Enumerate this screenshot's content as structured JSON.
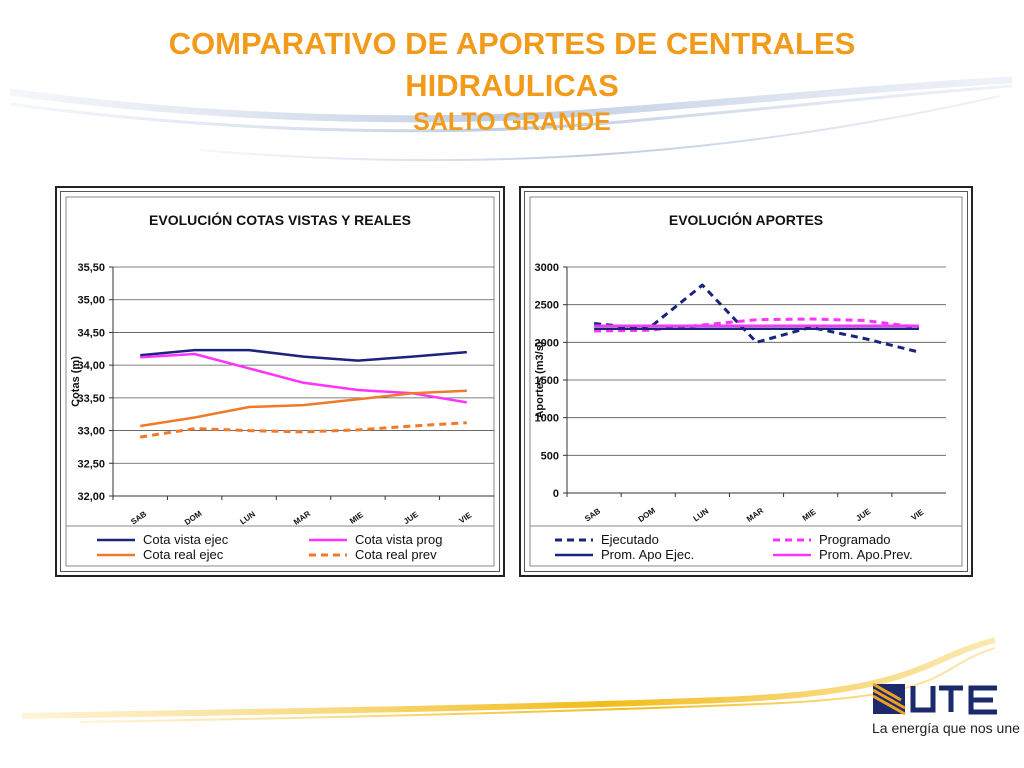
{
  "page": {
    "title_line1": "COMPARATIVO DE APORTES DE CENTRALES",
    "title_line2": "HIDRAULICAS",
    "subtitle": "SALTO GRANDE",
    "accent_color": "#f29a1a"
  },
  "brand": {
    "logo_text": "UTE",
    "tagline": "La energía que nos une"
  },
  "chart_data": [
    {
      "type": "line",
      "title": "EVOLUCIÓN  COTAS VISTAS Y REALES",
      "ylabel": "Cotas (m)",
      "xlabel": "",
      "categories": [
        "SAB",
        "DOM",
        "LUN",
        "MAR",
        "MIE",
        "JUE",
        "VIE"
      ],
      "ylim": [
        32.0,
        35.5
      ],
      "yticks": [
        "32,00",
        "32,50",
        "33,00",
        "33,50",
        "34,00",
        "34,50",
        "35,00",
        "35,50"
      ],
      "grid": true,
      "legend_position": "bottom",
      "series": [
        {
          "name": "Cota vista ejec",
          "color": "#1a237e",
          "dashed": false,
          "values": [
            34.15,
            34.23,
            34.23,
            34.13,
            34.07,
            34.13,
            34.2
          ]
        },
        {
          "name": "Cota vista prog",
          "color": "#ff33ff",
          "dashed": false,
          "values": [
            34.12,
            34.17,
            33.95,
            33.73,
            33.62,
            33.57,
            33.43
          ]
        },
        {
          "name": "Cota real ejec",
          "color": "#f07a2a",
          "dashed": false,
          "values": [
            33.07,
            33.2,
            33.36,
            33.39,
            33.48,
            33.57,
            33.61
          ]
        },
        {
          "name": "Cota real prev",
          "color": "#f07a2a",
          "dashed": true,
          "values": [
            32.9,
            33.03,
            33.0,
            32.98,
            33.01,
            33.07,
            33.12
          ]
        }
      ]
    },
    {
      "type": "line",
      "title": "EVOLUCIÓN  APORTES",
      "ylabel": "Aportes (m3/s)",
      "xlabel": "",
      "categories": [
        "SAB",
        "DOM",
        "LUN",
        "MAR",
        "MIE",
        "JUE",
        "VIE"
      ],
      "ylim": [
        0,
        3000
      ],
      "yticks": [
        "0",
        "500",
        "1000",
        "1500",
        "2000",
        "2500",
        "3000"
      ],
      "grid": true,
      "legend_position": "bottom",
      "series": [
        {
          "name": "Ejecutado",
          "color": "#1a237e",
          "dashed": true,
          "values": [
            2250,
            2180,
            2760,
            2000,
            2200,
            2050,
            1870
          ]
        },
        {
          "name": "Programado",
          "color": "#ff33ff",
          "dashed": true,
          "values": [
            2150,
            2160,
            2230,
            2300,
            2310,
            2290,
            2200
          ]
        },
        {
          "name": "Prom. Apo Ejec.",
          "color": "#1a237e",
          "dashed": false,
          "values": [
            2180,
            2180,
            2180,
            2180,
            2180,
            2180,
            2180
          ]
        },
        {
          "name": "Prom. Apo.Prev.",
          "color": "#ff33ff",
          "dashed": false,
          "values": [
            2220,
            2220,
            2220,
            2220,
            2220,
            2220,
            2220
          ]
        }
      ]
    }
  ]
}
